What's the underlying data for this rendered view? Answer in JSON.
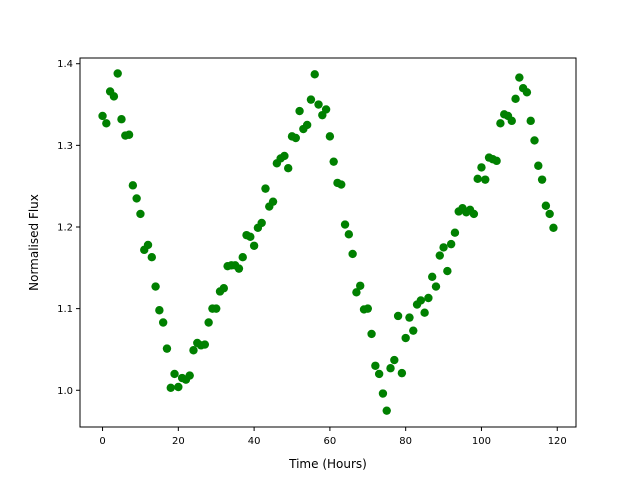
{
  "chart_data": {
    "type": "scatter",
    "title": "",
    "xlabel": "Time (Hours)",
    "ylabel": "Normalised Flux",
    "xlim": [
      -5.95,
      124.95
    ],
    "ylim": [
      0.955,
      1.407
    ],
    "xticks": [
      0,
      20,
      40,
      60,
      80,
      100,
      120
    ],
    "yticks": [
      1.0,
      1.1,
      1.2,
      1.3,
      1.4
    ],
    "xtick_labels": [
      "0",
      "20",
      "40",
      "60",
      "80",
      "100",
      "120"
    ],
    "ytick_labels": [
      "1.0",
      "1.1",
      "1.2",
      "1.3",
      "1.4"
    ],
    "grid": false,
    "marker_color": "#008000",
    "series": [
      {
        "x": [
          0,
          1,
          2,
          3,
          4,
          5,
          6,
          7,
          8,
          9,
          10,
          11,
          12,
          13,
          14,
          15,
          16,
          17,
          18,
          19,
          20,
          21,
          22,
          23,
          24,
          25,
          26,
          27,
          28,
          29,
          30,
          31,
          32,
          33,
          34,
          35,
          36,
          37,
          38,
          39,
          40,
          41,
          42,
          43,
          44,
          45,
          46,
          47,
          48,
          49,
          50,
          51,
          52,
          53,
          54,
          55,
          56,
          57,
          58,
          59,
          60,
          61,
          62,
          63,
          64,
          65,
          66,
          67,
          68,
          69,
          70,
          71,
          72,
          73,
          74,
          75,
          76,
          77,
          78,
          79,
          80,
          81,
          82,
          83,
          84,
          85,
          86,
          87,
          88,
          89,
          90,
          91,
          92,
          93,
          94,
          95,
          96,
          97,
          98,
          99,
          100,
          101,
          102,
          103,
          104,
          105,
          106,
          107,
          108,
          109,
          110,
          111,
          112,
          113,
          114,
          115,
          116,
          117,
          118,
          119
        ],
        "y": [
          1.336,
          1.327,
          1.366,
          1.36,
          1.388,
          1.332,
          1.312,
          1.313,
          1.251,
          1.235,
          1.216,
          1.172,
          1.178,
          1.163,
          1.127,
          1.098,
          1.083,
          1.051,
          1.003,
          1.02,
          1.004,
          1.015,
          1.013,
          1.018,
          1.049,
          1.058,
          1.055,
          1.056,
          1.083,
          1.1,
          1.1,
          1.121,
          1.125,
          1.152,
          1.153,
          1.153,
          1.149,
          1.163,
          1.19,
          1.188,
          1.177,
          1.199,
          1.205,
          1.247,
          1.225,
          1.231,
          1.278,
          1.284,
          1.287,
          1.272,
          1.311,
          1.309,
          1.342,
          1.32,
          1.325,
          1.356,
          1.387,
          1.35,
          1.337,
          1.344,
          1.311,
          1.28,
          1.254,
          1.252,
          1.203,
          1.191,
          1.167,
          1.12,
          1.128,
          1.099,
          1.1,
          1.069,
          1.03,
          1.02,
          0.996,
          0.975,
          1.027,
          1.037,
          1.091,
          1.021,
          1.064,
          1.089,
          1.073,
          1.105,
          1.11,
          1.095,
          1.113,
          1.139,
          1.127,
          1.165,
          1.175,
          1.146,
          1.179,
          1.193,
          1.219,
          1.223,
          1.218,
          1.221,
          1.216,
          1.259,
          1.273,
          1.258,
          1.285,
          1.283,
          1.281,
          1.327,
          1.338,
          1.336,
          1.33,
          1.357,
          1.383,
          1.37,
          1.365,
          1.33,
          1.306,
          1.275,
          1.258,
          1.226,
          1.216,
          1.199
        ]
      }
    ]
  }
}
